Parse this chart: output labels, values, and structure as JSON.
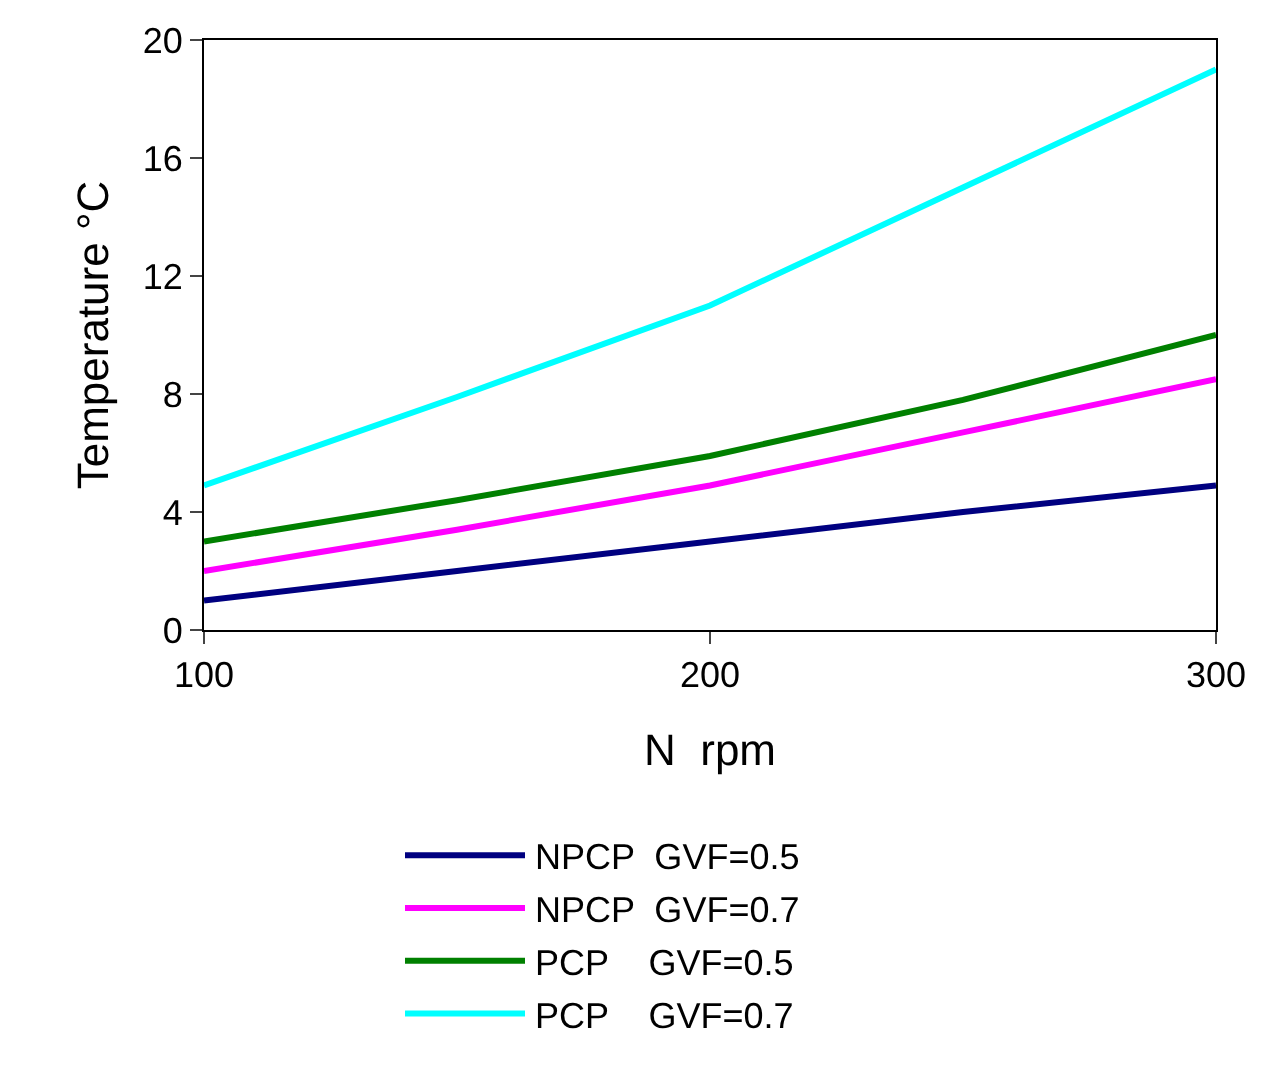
{
  "chart_data": {
    "type": "line",
    "xlabel": "N  rpm",
    "ylabel": "Temperature °C",
    "x": [
      100,
      150,
      200,
      250,
      300
    ],
    "xlim": [
      100,
      300
    ],
    "xticks": [
      100,
      200,
      300
    ],
    "ylim": [
      0,
      20
    ],
    "yticks": [
      0,
      4,
      8,
      12,
      16,
      20
    ],
    "grid": false,
    "legend": "bottom",
    "marker": "none",
    "line_style": "solid",
    "series": [
      {
        "name": "NPCP  GVF=0.5",
        "color": "#000080",
        "values": [
          1.0,
          2.0,
          3.0,
          4.0,
          4.9
        ]
      },
      {
        "name": "NPCP  GVF=0.7",
        "color": "#ff00ff",
        "values": [
          2.0,
          3.4,
          4.9,
          6.7,
          8.5
        ]
      },
      {
        "name": "PCP    GVF=0.5",
        "color": "#008000",
        "values": [
          3.0,
          4.4,
          5.9,
          7.8,
          10.0
        ]
      },
      {
        "name": "PCP    GVF=0.7",
        "color": "#00ffff",
        "values": [
          4.9,
          7.9,
          11.0,
          15.0,
          19.0
        ]
      }
    ]
  }
}
